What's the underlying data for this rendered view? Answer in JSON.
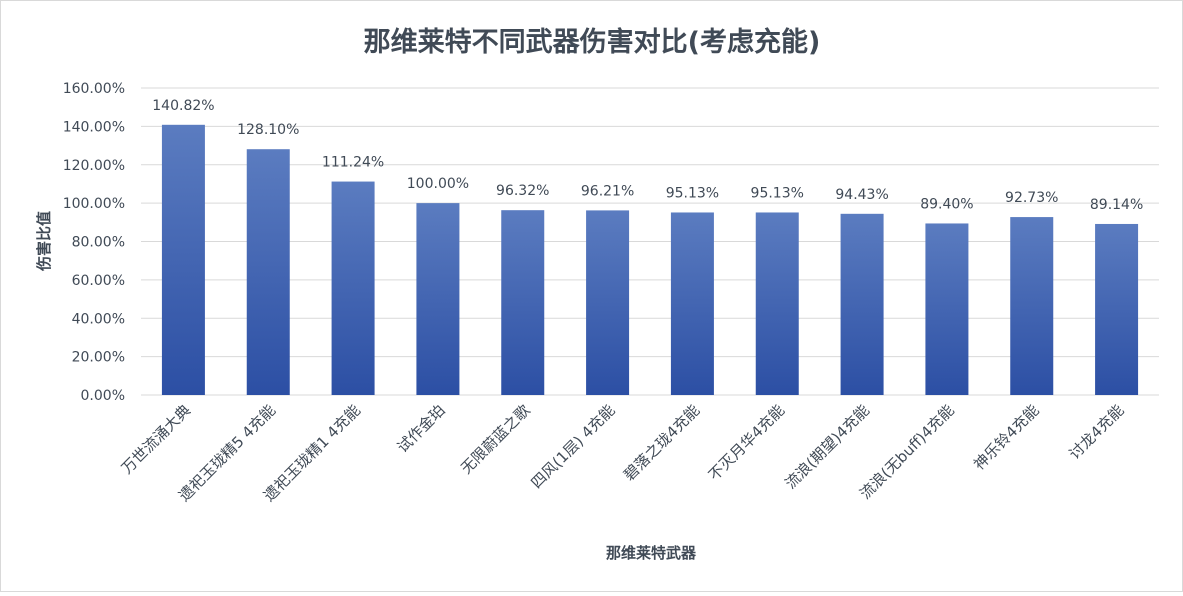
{
  "chart_data": {
    "type": "bar",
    "title": "那维莱特不同武器伤害对比(考虑充能)",
    "xlabel": "那维莱特武器",
    "ylabel": "伤害比值",
    "ylim": [
      0,
      160
    ],
    "yticks": [
      "0.00%",
      "20.00%",
      "40.00%",
      "60.00%",
      "80.00%",
      "100.00%",
      "120.00%",
      "140.00%",
      "160.00%"
    ],
    "grid": true,
    "categories": [
      "万世流涌大典",
      "遗祀玉珑精5 4充能",
      "遗祀玉珑精1 4充能",
      "试作金珀",
      "无限蔚蓝之歌",
      "四风(1层) 4充能",
      "碧落之珑4充能",
      "不灭月华4充能",
      "流浪(期望)4充能",
      "流浪(无buff)4充能",
      "神乐铃4充能",
      "讨龙4充能"
    ],
    "values": [
      140.82,
      128.1,
      111.24,
      100.0,
      96.32,
      96.21,
      95.13,
      95.13,
      94.43,
      89.4,
      92.73,
      89.14
    ],
    "data_labels": [
      "140.82%",
      "128.10%",
      "111.24%",
      "100.00%",
      "96.32%",
      "96.21%",
      "95.13%",
      "95.13%",
      "94.43%",
      "89.40%",
      "92.73%",
      "89.14%"
    ],
    "colors": {
      "bar_top": "#5b7cc0",
      "bar_bottom": "#2c4fa4",
      "grid": "#d9d9d9",
      "text": "#404a56"
    }
  }
}
